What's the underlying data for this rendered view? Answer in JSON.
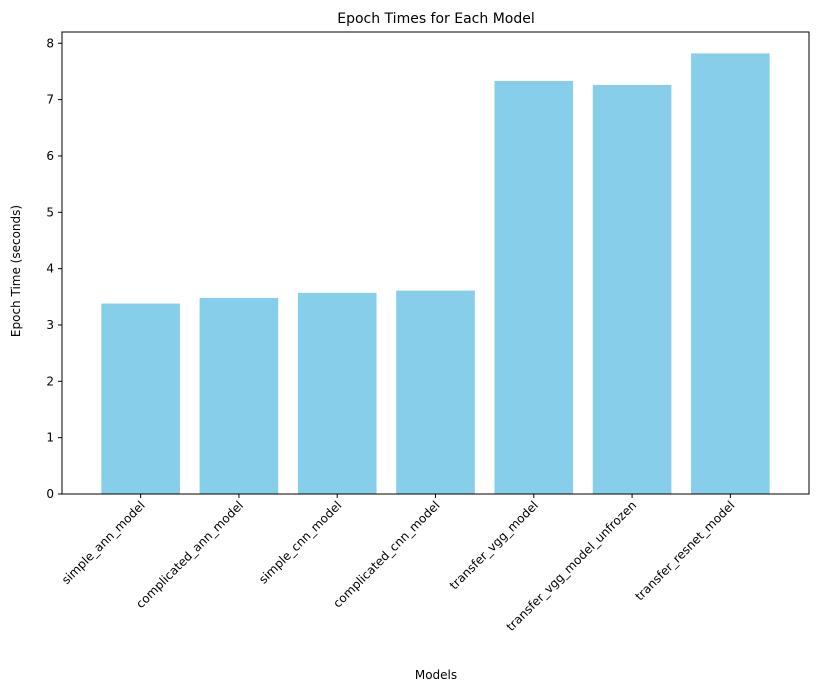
{
  "chart_data": {
    "type": "bar",
    "title": "Epoch Times for Each Model",
    "xlabel": "Models",
    "ylabel": "Epoch Time (seconds)",
    "categories": [
      "simple_ann_model",
      "complicated_ann_model",
      "simple_cnn_model",
      "complicated_cnn_model",
      "transfer_vgg_model",
      "transfer_vgg_model_unfrozen",
      "transfer_resnet_model"
    ],
    "values": [
      3.38,
      3.48,
      3.57,
      3.61,
      7.33,
      7.26,
      7.82
    ],
    "ylim": [
      0,
      8.2
    ],
    "yticks": [
      0,
      1,
      2,
      3,
      4,
      5,
      6,
      7,
      8
    ],
    "bar_color": "#87CEEB",
    "grid": false,
    "legend": "none",
    "xtick_rotation_deg": 45
  }
}
